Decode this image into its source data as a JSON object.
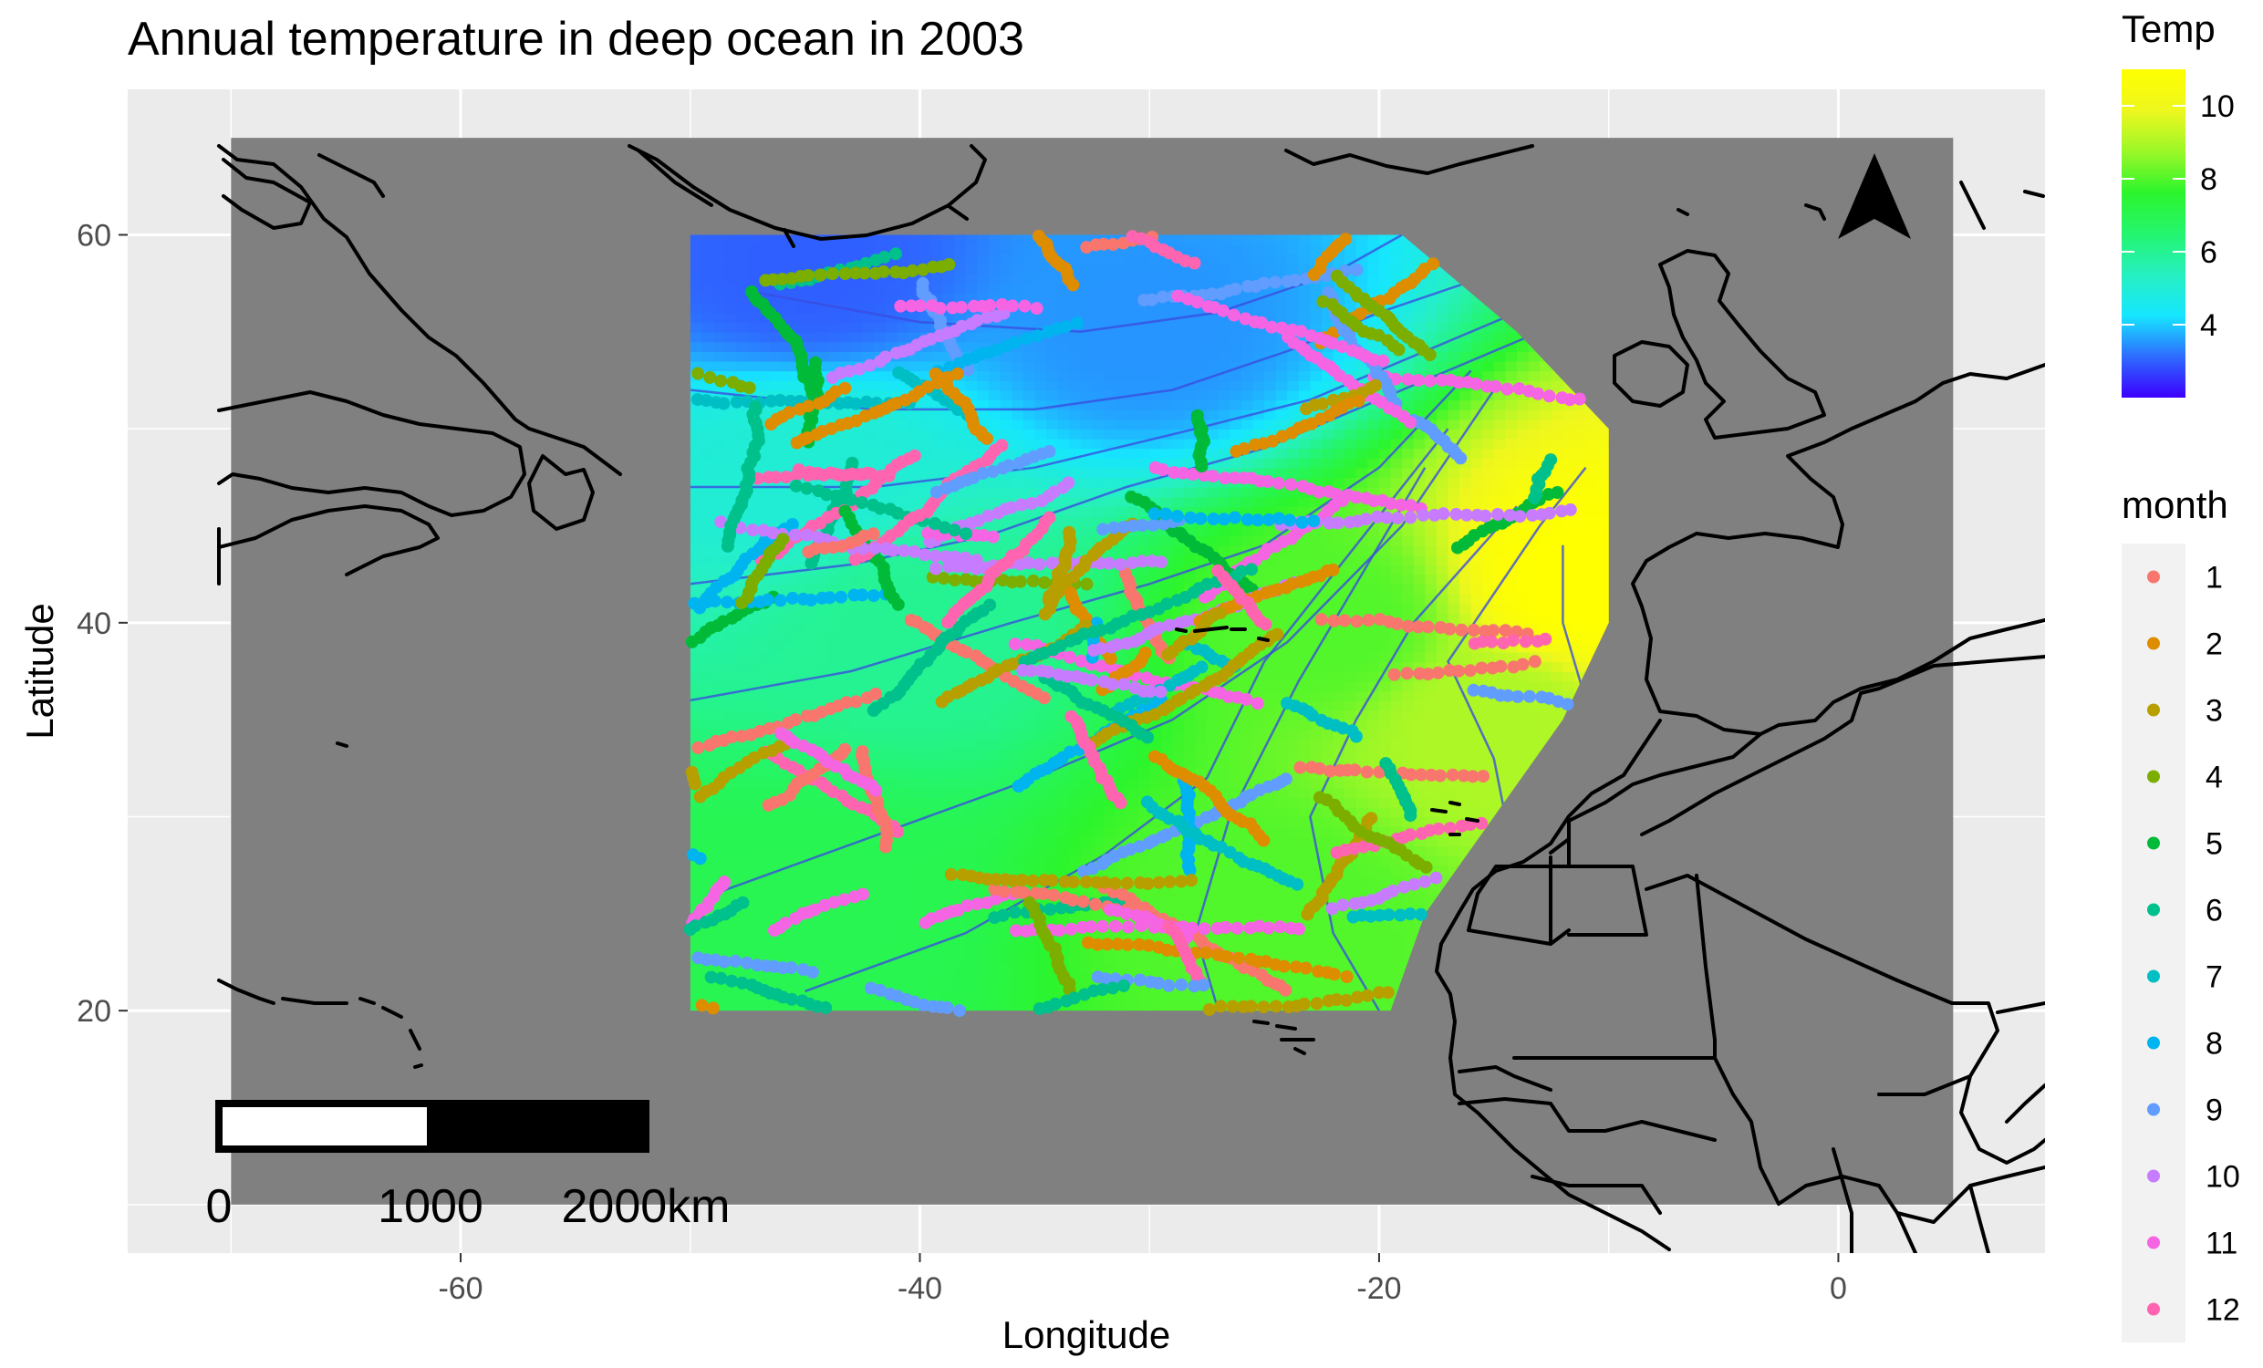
{
  "title": "Annual temperature in deep ocean in 2003",
  "x_axis": {
    "label": "Longitude",
    "range": [
      -74.5,
      9
    ],
    "ticks": [
      {
        "value": -60,
        "label": "-60"
      },
      {
        "value": -40,
        "label": "-40"
      },
      {
        "value": -20,
        "label": "-20"
      },
      {
        "value": 0,
        "label": "0"
      }
    ]
  },
  "y_axis": {
    "label": "Latitude",
    "range": [
      7.5,
      67.5
    ],
    "ticks": [
      {
        "value": 20,
        "label": "20"
      },
      {
        "value": 40,
        "label": "40"
      },
      {
        "value": 60,
        "label": "60"
      }
    ]
  },
  "temp_legend": {
    "title": "Temp",
    "ticks": [
      {
        "value": 4,
        "label": "4"
      },
      {
        "value": 6,
        "label": "6"
      },
      {
        "value": 8,
        "label": "8"
      },
      {
        "value": 10,
        "label": "10"
      }
    ],
    "min": 2,
    "max": 11,
    "colors": [
      "#3b00ff",
      "#2e6cff",
      "#16e6ff",
      "#26f0c0",
      "#24f56e",
      "#2cf52c",
      "#9cf728",
      "#eef71e",
      "#ffff00"
    ]
  },
  "month_legend": {
    "title": "month",
    "items": [
      {
        "label": "1",
        "color": "#F8766D"
      },
      {
        "label": "2",
        "color": "#DE8C00"
      },
      {
        "label": "3",
        "color": "#B79F00"
      },
      {
        "label": "4",
        "color": "#7CAE00"
      },
      {
        "label": "5",
        "color": "#00BA38"
      },
      {
        "label": "6",
        "color": "#00C08B"
      },
      {
        "label": "7",
        "color": "#00BFC4"
      },
      {
        "label": "8",
        "color": "#00B4F0"
      },
      {
        "label": "9",
        "color": "#619CFF"
      },
      {
        "label": "10",
        "color": "#C77CFF"
      },
      {
        "label": "11",
        "color": "#F564E3"
      },
      {
        "label": "12",
        "color": "#FF64B0"
      }
    ]
  },
  "scale_bar": {
    "labels": [
      "0",
      "1000",
      "2000km"
    ]
  },
  "north_arrow": "north-arrow-icon",
  "colors": {
    "panel_background": "#ebebeb",
    "land_mask": "#808080",
    "gridline": "#ffffff",
    "contour": "#3a4ee0"
  },
  "chart_data": {
    "type": "heatmap",
    "title": "Annual temperature in deep ocean in 2003",
    "xlabel": "Longitude",
    "ylabel": "Latitude",
    "xlim": [
      -74.5,
      9
    ],
    "ylim": [
      7.5,
      67.5
    ],
    "map_extent": {
      "lon": [
        -70,
        5
      ],
      "lat": [
        10,
        65
      ]
    },
    "grid": true,
    "fill_variable": "Temp",
    "fill_range": [
      2,
      11
    ],
    "interpolated_region": {
      "lon_range": [
        -50,
        -10
      ],
      "lat_range": [
        20,
        60
      ],
      "temperature_samples": [
        {
          "lon": -45,
          "lat": 58,
          "temp": 3
        },
        {
          "lon": -30,
          "lat": 55,
          "temp": 3.5
        },
        {
          "lon": -45,
          "lat": 48,
          "temp": 5
        },
        {
          "lon": -40,
          "lat": 40,
          "temp": 6
        },
        {
          "lon": -45,
          "lat": 25,
          "temp": 7
        },
        {
          "lon": -25,
          "lat": 25,
          "temp": 8
        },
        {
          "lon": -22,
          "lat": 40,
          "temp": 8
        },
        {
          "lon": -15,
          "lat": 35,
          "temp": 9
        },
        {
          "lon": -11,
          "lat": 42,
          "temp": 11
        }
      ]
    },
    "points": {
      "color_variable": "month",
      "legend_position": "right",
      "approximate_count": 2000,
      "series_by_month": [
        "1",
        "2",
        "3",
        "4",
        "5",
        "6",
        "7",
        "8",
        "9",
        "10",
        "11",
        "12"
      ]
    }
  }
}
